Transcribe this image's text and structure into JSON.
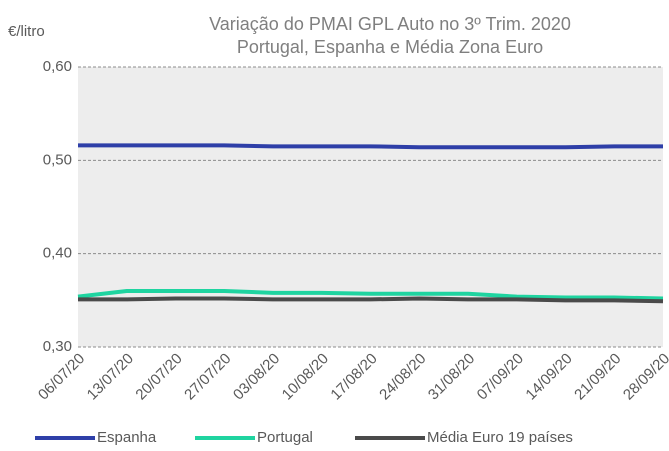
{
  "chart_data": {
    "type": "line",
    "title": "Variação do PMAI GPL Auto no 3º Trim. 2020",
    "subtitle": "Portugal, Espanha e Média Zona Euro",
    "y_label": "€/litro",
    "categories": [
      "06/07/20",
      "13/07/20",
      "20/07/20",
      "27/07/20",
      "03/08/20",
      "10/08/20",
      "17/08/20",
      "24/08/20",
      "31/08/20",
      "07/09/20",
      "14/09/20",
      "21/09/20",
      "28/09/20"
    ],
    "series": [
      {
        "name": "Espanha",
        "color": "#2e3fa8",
        "values": [
          0.516,
          0.516,
          0.516,
          0.516,
          0.515,
          0.515,
          0.515,
          0.514,
          0.514,
          0.514,
          0.514,
          0.515,
          0.515
        ]
      },
      {
        "name": "Portugal",
        "color": "#1fd4a0",
        "values": [
          0.354,
          0.36,
          0.36,
          0.36,
          0.358,
          0.358,
          0.357,
          0.357,
          0.357,
          0.354,
          0.353,
          0.353,
          0.352
        ]
      },
      {
        "name": "Média Euro 19 países",
        "color": "#4a4a4a",
        "values": [
          0.351,
          0.351,
          0.352,
          0.352,
          0.351,
          0.351,
          0.351,
          0.352,
          0.351,
          0.351,
          0.35,
          0.35,
          0.349
        ]
      }
    ],
    "ylim": [
      0.3,
      0.6
    ],
    "yticks": [
      {
        "value": 0.3,
        "label": "0,30"
      },
      {
        "value": 0.4,
        "label": "0,40"
      },
      {
        "value": 0.5,
        "label": "0,50"
      },
      {
        "value": 0.6,
        "label": "0,60"
      }
    ],
    "grid": true,
    "legend": "bottom"
  }
}
